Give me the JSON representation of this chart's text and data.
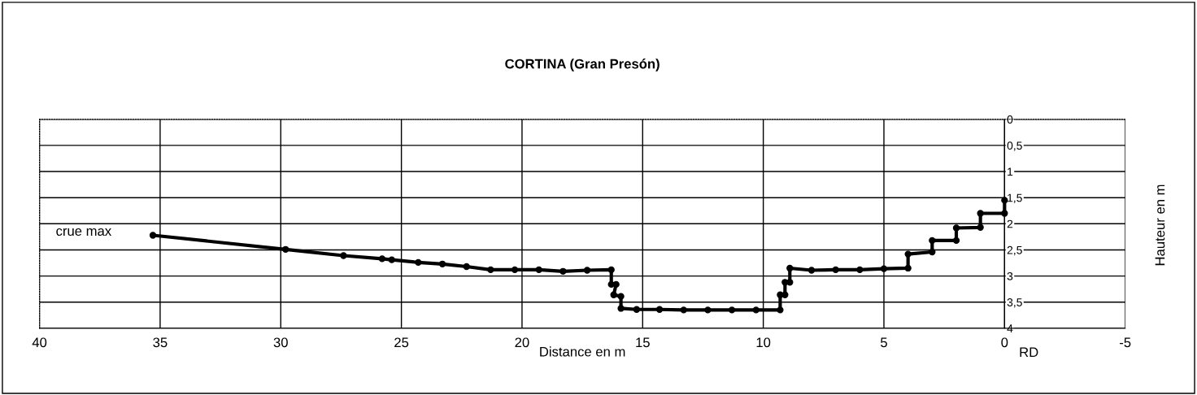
{
  "chart_data": {
    "type": "line",
    "title": "CORTINA (Gran Presón)",
    "xlabel": "Distance en m",
    "ylabel": "Hauteur en m",
    "series": [
      {
        "color": "#000000",
        "marker": "circle",
        "line_style": "solid",
        "x": [
          35.3,
          29.8,
          27.4,
          25.8,
          25.4,
          24.3,
          23.3,
          22.3,
          21.3,
          20.3,
          19.3,
          18.3,
          17.3,
          16.3,
          16.3,
          16.1,
          16.2,
          15.9,
          15.9,
          15.25,
          14.3,
          13.3,
          12.3,
          11.3,
          10.3,
          9.3,
          9.3,
          9.1,
          9.1,
          8.9,
          8.9,
          8.0,
          7.0,
          6.0,
          5.0,
          4.0,
          4.0,
          3.0,
          3.0,
          2.0,
          2.0,
          1.0,
          1.0,
          0,
          0
        ],
        "values": [
          2.22,
          2.49,
          2.61,
          2.67,
          2.69,
          2.74,
          2.77,
          2.82,
          2.88,
          2.88,
          2.88,
          2.91,
          2.89,
          2.88,
          3.16,
          3.16,
          3.36,
          3.39,
          3.62,
          3.64,
          3.64,
          3.65,
          3.65,
          3.65,
          3.65,
          3.65,
          3.36,
          3.36,
          3.12,
          3.12,
          2.85,
          2.89,
          2.88,
          2.88,
          2.86,
          2.85,
          2.58,
          2.54,
          2.32,
          2.32,
          2.08,
          2.07,
          1.8,
          1.8,
          1.55
        ]
      }
    ],
    "xlim": [
      40,
      -5
    ],
    "xticks": [
      40,
      35,
      30,
      25,
      20,
      15,
      10,
      5,
      0,
      -5
    ],
    "ylim": [
      4,
      0
    ],
    "yticks": [
      0,
      {
        "value": 0.5,
        "label": "0,5"
      },
      1,
      {
        "value": 1.5,
        "label": "1,5"
      },
      2,
      {
        "value": 2.5,
        "label": "2,5"
      },
      3,
      {
        "value": 3.5,
        "label": "3,5"
      },
      4
    ],
    "grid": true,
    "legend": false,
    "annotations": [
      "crue max",
      "RD"
    ]
  }
}
